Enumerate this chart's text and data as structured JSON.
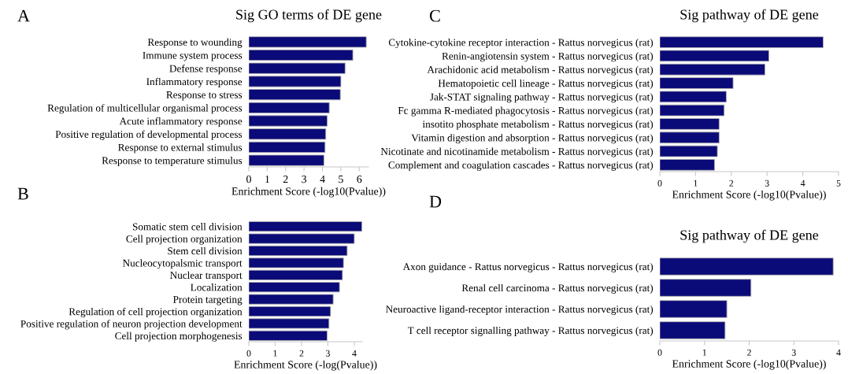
{
  "chart_data": [
    {
      "type": "bar",
      "orientation": "horizontal",
      "title": "Sig GO terms of DE gene",
      "annotations": [
        "A"
      ],
      "xlabel": "Enrichment Score (-log10(Pvalue))",
      "xlim": [
        0,
        6.5
      ],
      "xticks": [
        0,
        1,
        2,
        3,
        4,
        5,
        6
      ],
      "grid": false,
      "legend": false,
      "categories": [
        "Response to wounding",
        "Immune system process",
        "Defense response",
        "Inflammatory response",
        "Response to stress",
        "Regulation of multicellular organismal process",
        "Acute inflammatory response",
        "Positive regulation of developmental process",
        "Response to external stimulus",
        "Response to temperature stimulus"
      ],
      "series": [
        {
          "color": "#0a0a78",
          "values": [
            6.38,
            5.65,
            5.23,
            5.0,
            4.97,
            4.37,
            4.26,
            4.18,
            4.14,
            4.08
          ]
        }
      ]
    },
    {
      "type": "bar",
      "orientation": "horizontal",
      "annotations": [
        "B"
      ],
      "xlabel": "Enrichment Score (-log(Pvalue))",
      "xlim": [
        0,
        4.3
      ],
      "xticks": [
        0,
        1,
        2,
        3,
        4
      ],
      "grid": false,
      "legend": false,
      "categories": [
        "Somatic stem cell division",
        "Cell projection organization",
        "Stem cell division",
        "Nucleocytopalsmic transport",
        "Nuclear transport",
        "Localization",
        "Protein targeting",
        "Regulation of cell projection organization",
        "Positive regulation of neuron projection development",
        "Cell projection morphogenesis"
      ],
      "series": [
        {
          "color": "#0a0a78",
          "values": [
            4.29,
            4.0,
            3.73,
            3.59,
            3.55,
            3.44,
            3.2,
            3.1,
            3.04,
            2.97
          ]
        }
      ]
    },
    {
      "type": "bar",
      "orientation": "horizontal",
      "title": "Sig pathway of DE gene",
      "annotations": [
        "C"
      ],
      "xlabel": "Enrichment Score (-log10(Pvalue))",
      "xlim": [
        0,
        5
      ],
      "xticks": [
        0,
        1,
        2,
        3,
        4,
        5
      ],
      "grid": false,
      "legend": false,
      "categories": [
        "Cytokine-cytokine receptor interaction - Rattus norvegicus (rat)",
        "Renin-angiotensin system - Rattus norvegicus (rat)",
        "Arachidonic acid metabolism - Rattus norvegicus (rat)",
        "Hematopoietic cell lineage - Rattus norvegicus (rat)",
        "Jak-STAT signaling pathway - Rattus norvegicus (rat)",
        "Fc gamma R-mediated phagocytosis - Rattus norvegicus (rat)",
        "insotito phosphate metabolism - Rattus norvegicus (rat)",
        "Vitamin digestion and absorption - Rattus norvegicus (rat)",
        "Nicotinate and nicotinamide metabolism - Rattus norvegicus (rat)",
        "Complement and coagulation cascades - Rattus norvegicus (rat)"
      ],
      "series": [
        {
          "color": "#0a0a78",
          "values": [
            4.57,
            3.05,
            2.94,
            2.05,
            1.86,
            1.8,
            1.66,
            1.66,
            1.61,
            1.53
          ]
        }
      ]
    },
    {
      "type": "bar",
      "orientation": "horizontal",
      "title": "Sig pathway of DE gene",
      "annotations": [
        "D"
      ],
      "xlabel": "Enrichment Score (-log10(Pvalue))",
      "xlim": [
        0,
        4
      ],
      "xticks": [
        0,
        1,
        2,
        3,
        4
      ],
      "grid": false,
      "legend": false,
      "categories": [
        "Axon guidance - Rattus norvegicus - Rattus norvegicus (rat)",
        "Renal cell carcinoma - Rattus norvegicus (rat)",
        "Neuroactive ligand-receptor interaction - Rattus norvegicus (rat)",
        "T cell receptor signalling pathway - Rattus norvegicus (rat)"
      ],
      "series": [
        {
          "color": "#0a0a78",
          "values": [
            3.88,
            2.04,
            1.5,
            1.46
          ]
        }
      ]
    }
  ]
}
